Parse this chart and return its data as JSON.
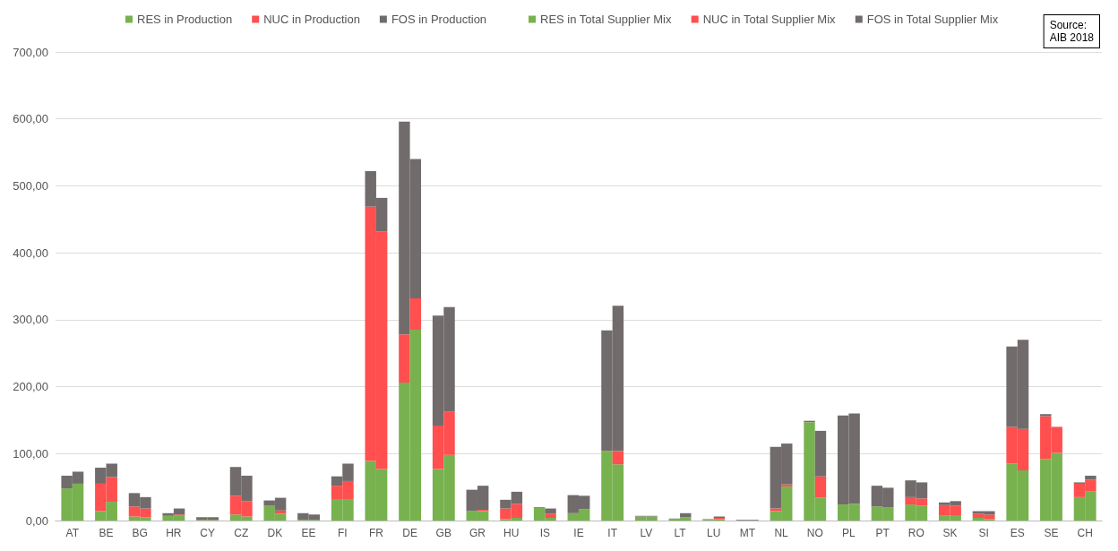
{
  "chart_data": [
    {
      "type": "bar",
      "stacked": true,
      "legend": "top",
      "grid": "y",
      "annotations": [
        "Source:\nAIB 2018"
      ],
      "categories": [
        "AT",
        "BE",
        "BG",
        "HR",
        "CY",
        "CZ",
        "DK",
        "EE",
        "FI",
        "FR",
        "DE",
        "GB",
        "GR",
        "HU",
        "IS",
        "IE",
        "IT",
        "LV",
        "LT",
        "LU",
        "MT",
        "NL",
        "NO",
        "PL",
        "PT",
        "RO",
        "SK",
        "SI",
        "ES",
        "SE",
        "CH"
      ],
      "ylim": [
        0,
        700
      ],
      "yticks": [
        {
          "value": 0,
          "label": "0,00"
        },
        {
          "value": 100,
          "label": "100,00"
        },
        {
          "value": 200,
          "label": "200,00"
        },
        {
          "value": 300,
          "label": "300,00"
        },
        {
          "value": 400,
          "label": "400,00"
        },
        {
          "value": 500,
          "label": "500,00"
        },
        {
          "value": 600,
          "label": "600,00"
        },
        {
          "value": 700,
          "label": "700,00"
        }
      ],
      "series": [
        {
          "name": "RES in Production",
          "color": "#77b24f",
          "values": [
            48,
            14,
            6,
            7,
            1,
            9,
            22,
            1,
            31,
            89,
            206,
            77,
            14,
            2,
            19,
            11,
            104,
            6,
            2,
            1,
            0,
            14,
            147,
            24,
            21,
            24,
            7,
            4,
            85,
            92,
            35
          ]
        },
        {
          "name": "NUC in Production",
          "color": "#ff4f4f",
          "values": [
            0,
            41,
            15,
            0,
            0,
            28,
            0,
            0,
            21,
            380,
            72,
            65,
            0,
            16,
            0,
            0,
            0,
            0,
            0,
            0,
            0,
            4,
            0,
            0,
            0,
            11,
            16,
            6,
            55,
            64,
            20
          ]
        },
        {
          "name": "FOS in Production",
          "color": "#716c6b",
          "values": [
            19,
            24,
            20,
            4,
            4,
            43,
            8,
            10,
            14,
            53,
            318,
            164,
            32,
            13,
            1,
            27,
            180,
            1,
            1,
            1,
            1,
            92,
            2,
            133,
            31,
            25,
            4,
            4,
            120,
            3,
            2
          ]
        }
      ]
    },
    {
      "type": "bar",
      "stacked": true,
      "legend": "top",
      "categories": [
        null,
        null,
        null,
        null,
        null,
        null,
        null,
        null,
        null,
        null,
        null,
        null,
        null,
        null,
        null,
        null,
        null,
        null,
        null,
        null,
        null,
        null,
        null,
        null,
        null,
        null,
        null,
        null,
        null,
        null,
        null
      ],
      "ylim": [
        0,
        700
      ],
      "series": [
        {
          "name": "RES in Total Supplier Mix",
          "color": "#77b24f",
          "values": [
            55,
            28,
            5,
            7,
            1,
            6,
            10,
            1,
            31,
            77,
            285,
            98,
            14,
            4,
            4,
            17,
            84,
            6,
            5,
            2,
            0,
            51,
            34,
            25,
            20,
            22,
            8,
            2,
            75,
            101,
            44
          ]
        },
        {
          "name": "NUC in Total Supplier Mix",
          "color": "#ff4f4f",
          "values": [
            0,
            37,
            13,
            2,
            0,
            23,
            5,
            0,
            28,
            355,
            47,
            65,
            2,
            21,
            6,
            0,
            20,
            0,
            0,
            2,
            0,
            3,
            32,
            0,
            0,
            11,
            14,
            7,
            62,
            39,
            17
          ]
        },
        {
          "name": "FOS in Total Supplier Mix",
          "color": "#716c6b",
          "values": [
            18,
            20,
            17,
            9,
            4,
            38,
            19,
            8,
            26,
            50,
            208,
            156,
            36,
            18,
            8,
            20,
            217,
            1,
            6,
            2,
            1,
            61,
            68,
            135,
            29,
            24,
            7,
            5,
            133,
            0,
            6
          ]
        }
      ]
    }
  ]
}
